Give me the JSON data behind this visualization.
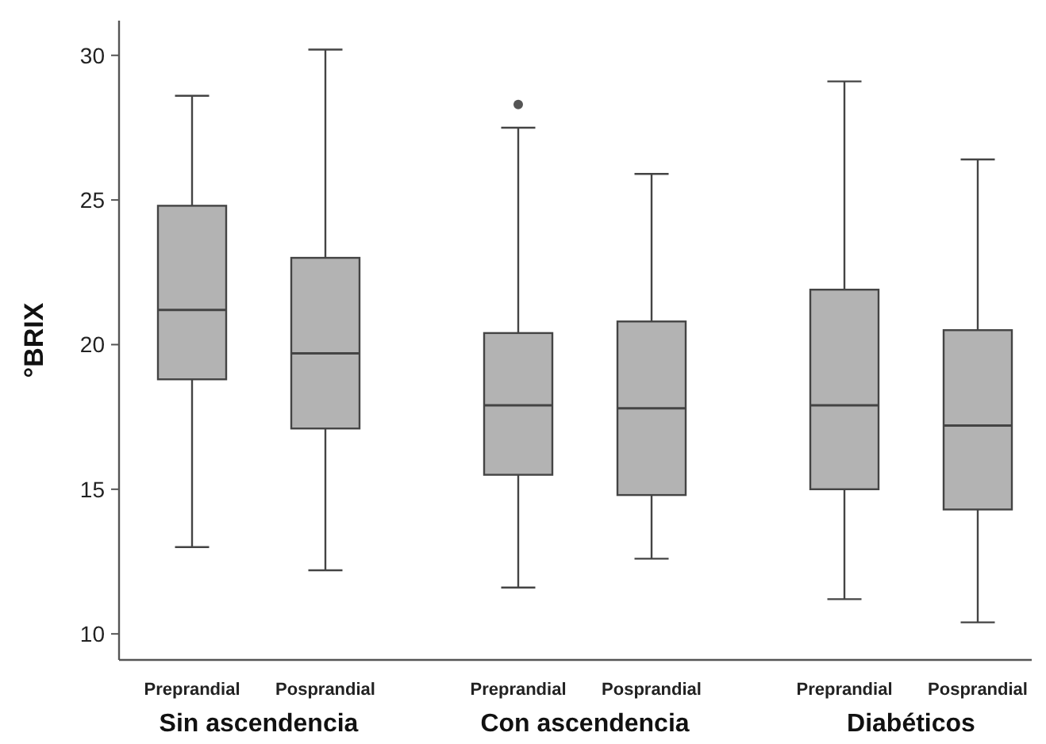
{
  "chart_data": {
    "type": "box",
    "ylabel": "°BRIX",
    "categories": [
      "Preprandial",
      "Posprandial",
      "Preprandial",
      "Posprandial",
      "Preprandial",
      "Posprandial"
    ],
    "annotations": [
      "Sin ascendencia",
      "Con ascendencia",
      "Diabéticos"
    ],
    "color": "#b3b3b3",
    "boxes": [
      {
        "low": 13.0,
        "q1": 18.8,
        "median": 21.2,
        "q3": 24.8,
        "high": 28.6
      },
      {
        "low": 12.2,
        "q1": 17.1,
        "median": 19.7,
        "q3": 23.0,
        "high": 30.2
      },
      {
        "low": 11.6,
        "q1": 15.5,
        "median": 17.9,
        "q3": 20.4,
        "high": 27.5,
        "outliers": [
          28.3
        ]
      },
      {
        "low": 12.6,
        "q1": 14.8,
        "median": 17.8,
        "q3": 20.8,
        "high": 25.9
      },
      {
        "low": 11.2,
        "q1": 15.0,
        "median": 17.9,
        "q3": 21.9,
        "high": 29.1
      },
      {
        "low": 10.4,
        "q1": 14.3,
        "median": 17.2,
        "q3": 20.5,
        "high": 26.4
      }
    ],
    "ylim": [
      9.1,
      31.2
    ],
    "yticks": [
      10,
      15,
      20,
      25,
      30
    ],
    "grid": false
  }
}
